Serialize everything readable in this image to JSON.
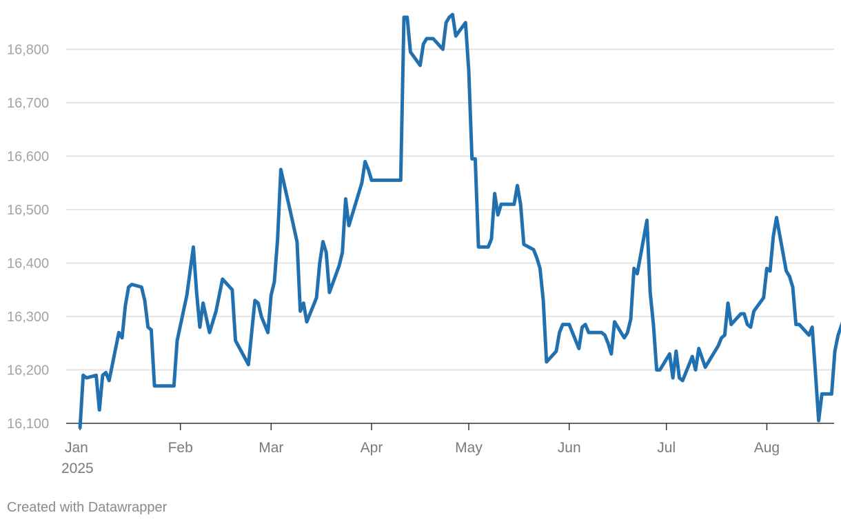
{
  "footer": {
    "credit": "Created with Datawrapper"
  },
  "chart_data": {
    "type": "line",
    "title": "",
    "xlabel": "",
    "ylabel": "",
    "ylim": [
      16090,
      16880
    ],
    "yticks": [
      16100,
      16200,
      16300,
      16400,
      16500,
      16600,
      16700,
      16800
    ],
    "ytick_labels": [
      "16,100",
      "16,200",
      "16,300",
      "16,400",
      "16,500",
      "16,600",
      "16,700",
      "16,800"
    ],
    "xticks": [
      {
        "date": "2025-01-01",
        "label": "Jan",
        "sublabel": "2025"
      },
      {
        "date": "2025-02-01",
        "label": "Feb"
      },
      {
        "date": "2025-03-01",
        "label": "Mar"
      },
      {
        "date": "2025-04-01",
        "label": "Apr"
      },
      {
        "date": "2025-05-01",
        "label": "May"
      },
      {
        "date": "2025-06-01",
        "label": "Jun"
      },
      {
        "date": "2025-07-01",
        "label": "Jul"
      },
      {
        "date": "2025-08-01",
        "label": "Aug"
      }
    ],
    "grid": true,
    "line_color": "#2171b0",
    "series": [
      {
        "values": [
          [
            "2025-01-01",
            16090
          ],
          [
            "2025-01-02",
            16190
          ],
          [
            "2025-01-03",
            16185
          ],
          [
            "2025-01-06",
            16190
          ],
          [
            "2025-01-07",
            16125
          ],
          [
            "2025-01-08",
            16190
          ],
          [
            "2025-01-09",
            16195
          ],
          [
            "2025-01-10",
            16180
          ],
          [
            "2025-01-13",
            16270
          ],
          [
            "2025-01-14",
            16260
          ],
          [
            "2025-01-15",
            16320
          ],
          [
            "2025-01-16",
            16355
          ],
          [
            "2025-01-17",
            16360
          ],
          [
            "2025-01-20",
            16355
          ],
          [
            "2025-01-21",
            16330
          ],
          [
            "2025-01-22",
            16280
          ],
          [
            "2025-01-23",
            16275
          ],
          [
            "2025-01-24",
            16170
          ],
          [
            "2025-01-30",
            16170
          ],
          [
            "2025-01-31",
            16255
          ],
          [
            "2025-02-03",
            16340
          ],
          [
            "2025-02-04",
            16385
          ],
          [
            "2025-02-05",
            16430
          ],
          [
            "2025-02-06",
            16345
          ],
          [
            "2025-02-07",
            16280
          ],
          [
            "2025-02-08",
            16325
          ],
          [
            "2025-02-10",
            16270
          ],
          [
            "2025-02-12",
            16310
          ],
          [
            "2025-02-14",
            16370
          ],
          [
            "2025-02-17",
            16350
          ],
          [
            "2025-02-18",
            16255
          ],
          [
            "2025-02-22",
            16210
          ],
          [
            "2025-02-24",
            16330
          ],
          [
            "2025-02-25",
            16325
          ],
          [
            "2025-02-26",
            16300
          ],
          [
            "2025-02-28",
            16270
          ],
          [
            "2025-03-01",
            16340
          ],
          [
            "2025-03-02",
            16365
          ],
          [
            "2025-03-03",
            16445
          ],
          [
            "2025-03-04",
            16575
          ],
          [
            "2025-03-07",
            16495
          ],
          [
            "2025-03-09",
            16440
          ],
          [
            "2025-03-10",
            16310
          ],
          [
            "2025-03-11",
            16325
          ],
          [
            "2025-03-12",
            16290
          ],
          [
            "2025-03-15",
            16335
          ],
          [
            "2025-03-16",
            16400
          ],
          [
            "2025-03-17",
            16440
          ],
          [
            "2025-03-18",
            16420
          ],
          [
            "2025-03-19",
            16345
          ],
          [
            "2025-03-22",
            16395
          ],
          [
            "2025-03-23",
            16420
          ],
          [
            "2025-03-24",
            16520
          ],
          [
            "2025-03-25",
            16470
          ],
          [
            "2025-03-26",
            16490
          ],
          [
            "2025-03-29",
            16550
          ],
          [
            "2025-03-30",
            16590
          ],
          [
            "2025-03-31",
            16575
          ],
          [
            "2025-04-01",
            16555
          ],
          [
            "2025-04-10",
            16555
          ],
          [
            "2025-04-11",
            16860
          ],
          [
            "2025-04-12",
            16860
          ],
          [
            "2025-04-13",
            16795
          ],
          [
            "2025-04-16",
            16770
          ],
          [
            "2025-04-17",
            16810
          ],
          [
            "2025-04-18",
            16820
          ],
          [
            "2025-04-20",
            16820
          ],
          [
            "2025-04-23",
            16800
          ],
          [
            "2025-04-24",
            16850
          ],
          [
            "2025-04-25",
            16860
          ],
          [
            "2025-04-26",
            16865
          ],
          [
            "2025-04-27",
            16825
          ],
          [
            "2025-04-30",
            16850
          ],
          [
            "2025-05-01",
            16760
          ],
          [
            "2025-05-02",
            16595
          ],
          [
            "2025-05-03",
            16595
          ],
          [
            "2025-05-04",
            16430
          ],
          [
            "2025-05-07",
            16430
          ],
          [
            "2025-05-08",
            16445
          ],
          [
            "2025-05-09",
            16530
          ],
          [
            "2025-05-10",
            16490
          ],
          [
            "2025-05-11",
            16510
          ],
          [
            "2025-05-15",
            16510
          ],
          [
            "2025-05-16",
            16545
          ],
          [
            "2025-05-17",
            16510
          ],
          [
            "2025-05-18",
            16435
          ],
          [
            "2025-05-21",
            16425
          ],
          [
            "2025-05-22",
            16410
          ],
          [
            "2025-05-23",
            16390
          ],
          [
            "2025-05-24",
            16330
          ],
          [
            "2025-05-25",
            16215
          ],
          [
            "2025-05-28",
            16235
          ],
          [
            "2025-05-29",
            16270
          ],
          [
            "2025-05-30",
            16285
          ],
          [
            "2025-06-01",
            16285
          ],
          [
            "2025-06-04",
            16240
          ],
          [
            "2025-06-05",
            16280
          ],
          [
            "2025-06-06",
            16285
          ],
          [
            "2025-06-07",
            16270
          ],
          [
            "2025-06-11",
            16270
          ],
          [
            "2025-06-12",
            16265
          ],
          [
            "2025-06-13",
            16250
          ],
          [
            "2025-06-14",
            16230
          ],
          [
            "2025-06-15",
            16290
          ],
          [
            "2025-06-18",
            16260
          ],
          [
            "2025-06-19",
            16270
          ],
          [
            "2025-06-20",
            16295
          ],
          [
            "2025-06-21",
            16390
          ],
          [
            "2025-06-22",
            16380
          ],
          [
            "2025-06-25",
            16480
          ],
          [
            "2025-06-26",
            16345
          ],
          [
            "2025-06-27",
            16285
          ],
          [
            "2025-06-28",
            16200
          ],
          [
            "2025-06-29",
            16200
          ],
          [
            "2025-07-02",
            16230
          ],
          [
            "2025-07-03",
            16185
          ],
          [
            "2025-07-04",
            16235
          ],
          [
            "2025-07-05",
            16185
          ],
          [
            "2025-07-06",
            16180
          ],
          [
            "2025-07-09",
            16225
          ],
          [
            "2025-07-10",
            16200
          ],
          [
            "2025-07-11",
            16240
          ],
          [
            "2025-07-13",
            16205
          ],
          [
            "2025-07-17",
            16245
          ],
          [
            "2025-07-18",
            16260
          ],
          [
            "2025-07-19",
            16265
          ],
          [
            "2025-07-20",
            16325
          ],
          [
            "2025-07-21",
            16285
          ],
          [
            "2025-07-24",
            16305
          ],
          [
            "2025-07-25",
            16305
          ],
          [
            "2025-07-26",
            16285
          ],
          [
            "2025-07-27",
            16280
          ],
          [
            "2025-07-28",
            16310
          ],
          [
            "2025-07-31",
            16335
          ],
          [
            "2025-08-01",
            16390
          ],
          [
            "2025-08-02",
            16385
          ],
          [
            "2025-08-03",
            16450
          ],
          [
            "2025-08-04",
            16485
          ],
          [
            "2025-08-07",
            16385
          ],
          [
            "2025-08-08",
            16375
          ],
          [
            "2025-08-09",
            16355
          ],
          [
            "2025-08-10",
            16285
          ],
          [
            "2025-08-11",
            16285
          ],
          [
            "2025-08-14",
            16265
          ],
          [
            "2025-08-15",
            16280
          ],
          [
            "2025-08-16",
            16195
          ],
          [
            "2025-08-17",
            16105
          ],
          [
            "2025-08-18",
            16155
          ],
          [
            "2025-08-21",
            16155
          ],
          [
            "2025-08-22",
            16235
          ],
          [
            "2025-08-23",
            16265
          ],
          [
            "2025-08-25",
            16300
          ]
        ]
      }
    ]
  }
}
